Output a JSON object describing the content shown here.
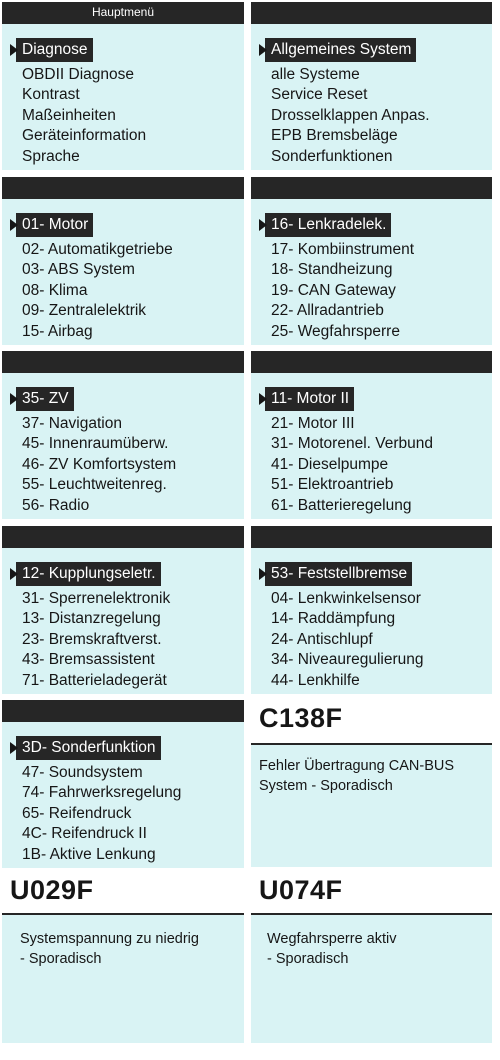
{
  "panels": [
    {
      "header": "Hauptmenü",
      "selected": "Diagnose",
      "items": [
        "OBDII Diagnose",
        "Kontrast",
        "Maßeinheiten",
        "Geräteinformation",
        "Sprache"
      ]
    },
    {
      "header": "",
      "selected": "Allgemeines System",
      "items": [
        "alle Systeme",
        "Service Reset",
        "Drosselklappen Anpas.",
        "EPB Bremsbeläge",
        "Sonderfunktionen"
      ]
    },
    {
      "header": "",
      "selected": "01- Motor",
      "items": [
        "02- Automatikgetriebe",
        "03- ABS System",
        "08- Klima",
        "09- Zentralelektrik",
        "15- Airbag"
      ]
    },
    {
      "header": "",
      "selected": "16- Lenkradelek.",
      "items": [
        "17- Kombiinstrument",
        "18- Standheizung",
        "19- CAN Gateway",
        "22- Allradantrieb",
        "25- Wegfahrsperre"
      ]
    },
    {
      "header": "",
      "selected": "35- ZV",
      "items": [
        "37- Navigation",
        "45- Innenraumüberw.",
        "46- ZV Komfortsystem",
        "55- Leuchtweitenreg.",
        "56- Radio"
      ]
    },
    {
      "header": "",
      "selected": "11- Motor II",
      "items": [
        "21- Motor III",
        "31- Motorenel. Verbund",
        "41- Dieselpumpe",
        "51- Elektroantrieb",
        "61- Batterieregelung"
      ]
    },
    {
      "header": "",
      "selected": "12- Kupplungseletr.",
      "items": [
        "31- Sperrenelektronik",
        "13- Distanzregelung",
        "23- Bremskraftverst.",
        "43- Bremsassistent",
        "71- Batterieladegerät"
      ]
    },
    {
      "header": "",
      "selected": "53- Feststellbremse",
      "items": [
        "04- Lenkwinkelsensor",
        "14- Raddämpfung",
        "24- Antischlupf",
        "34- Niveauregulierung",
        "44- Lenkhilfe"
      ]
    },
    {
      "header": "",
      "selected": "3D- Sonderfunktion",
      "items": [
        "47- Soundsystem",
        "74- Fahrwerksregelung",
        "65- Reifendruck",
        "4C- Reifendruck II",
        "1B- Aktive Lenkung"
      ]
    }
  ],
  "dtcs": [
    {
      "code": "C138F",
      "lines": [
        "Fehler Übertragung CAN-BUS",
        "System - Sporadisch"
      ]
    },
    {
      "code": "U029F",
      "lines": [
        "Systemspannung zu niedrig",
        "- Sporadisch"
      ]
    },
    {
      "code": "U074F",
      "lines": [
        "Wegfahrsperre aktiv",
        "- Sporadisch"
      ]
    }
  ]
}
